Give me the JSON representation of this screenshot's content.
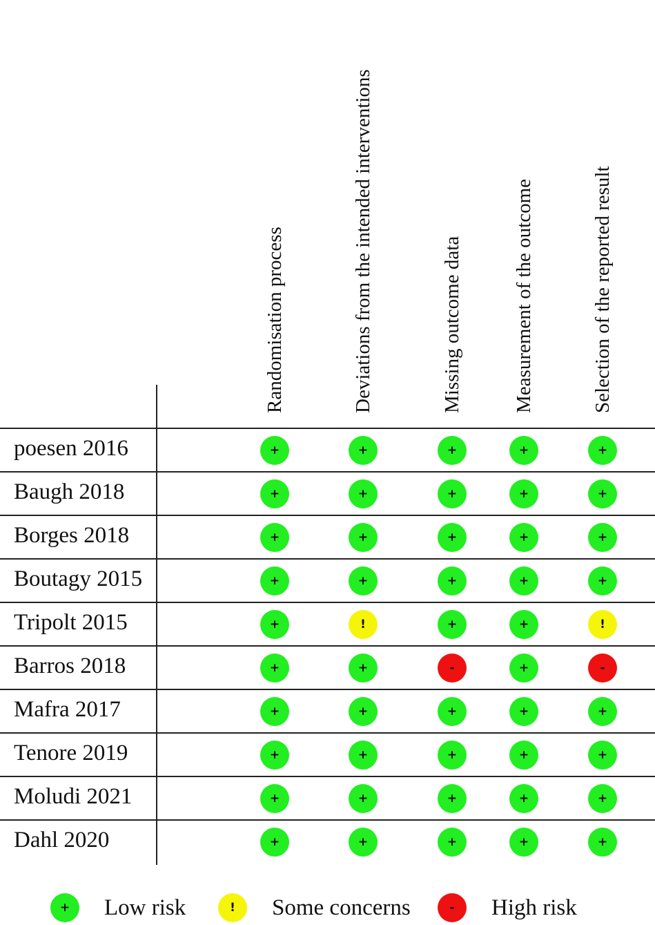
{
  "chart_data": {
    "type": "table",
    "domains": [
      "Randomisation process",
      "Deviations from the intended interventions",
      "Missing outcome data",
      "Measurement of the outcome",
      "Selection of the reported result"
    ],
    "studies": [
      {
        "name": "poesen 2016",
        "ratings": [
          "low",
          "low",
          "low",
          "low",
          "low"
        ]
      },
      {
        "name": "Baugh 2018",
        "ratings": [
          "low",
          "low",
          "low",
          "low",
          "low"
        ]
      },
      {
        "name": "Borges 2018",
        "ratings": [
          "low",
          "low",
          "low",
          "low",
          "low"
        ]
      },
      {
        "name": "Boutagy 2015",
        "ratings": [
          "low",
          "low",
          "low",
          "low",
          "low"
        ]
      },
      {
        "name": "Tripolt 2015",
        "ratings": [
          "low",
          "some",
          "low",
          "low",
          "some"
        ]
      },
      {
        "name": "Barros 2018",
        "ratings": [
          "low",
          "low",
          "high",
          "low",
          "high"
        ]
      },
      {
        "name": "Mafra 2017",
        "ratings": [
          "low",
          "low",
          "low",
          "low",
          "low"
        ]
      },
      {
        "name": "Tenore 2019",
        "ratings": [
          "low",
          "low",
          "low",
          "low",
          "low"
        ]
      },
      {
        "name": "Moludi 2021",
        "ratings": [
          "low",
          "low",
          "low",
          "low",
          "low"
        ]
      },
      {
        "name": "Dahl 2020",
        "ratings": [
          "low",
          "low",
          "low",
          "low",
          "low"
        ]
      }
    ],
    "legend": [
      {
        "key": "low",
        "symbol": "+",
        "label": "Low risk",
        "color": "#22ee22"
      },
      {
        "key": "some",
        "symbol": "!",
        "label": "Some concerns",
        "color": "#f5f50a"
      },
      {
        "key": "high",
        "symbol": "-",
        "label": "High risk",
        "color": "#ee1111"
      }
    ]
  }
}
